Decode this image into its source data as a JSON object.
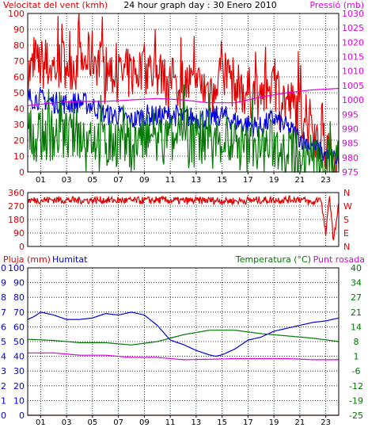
{
  "colors": {
    "red": "#e00000",
    "blue": "#0000e0",
    "green": "#007800",
    "magenta": "#e000e0",
    "grid": "#000000",
    "border": "#000000"
  },
  "chart_data": [
    {
      "id": "wind_pressure",
      "type": "line",
      "title": "24 hour graph day : 30 Enero 2010",
      "left_label": "Velocitat del vent (kmh)",
      "right_label": "Pressió (mb)",
      "x_ticks": [
        "01",
        "03",
        "05",
        "07",
        "09",
        "11",
        "13",
        "15",
        "17",
        "19",
        "21",
        "23"
      ],
      "x_range": [
        0,
        24
      ],
      "y_left_ticks": [
        "0",
        "10",
        "20",
        "30",
        "40",
        "50",
        "60",
        "70",
        "80",
        "90",
        "100"
      ],
      "y_left_range": [
        0,
        100
      ],
      "y_right_ticks": [
        "975",
        "980",
        "985",
        "990",
        "995",
        "1000",
        "1005",
        "1010",
        "1015",
        "1020",
        "1025",
        "1030"
      ],
      "y_right_range": [
        975,
        1030
      ],
      "grid": true,
      "series": [
        {
          "name": "Velocitat del vent",
          "color": "red",
          "axis": "left",
          "style": "gust",
          "x": [
            0,
            1,
            2,
            3,
            4,
            5,
            6,
            7,
            8,
            9,
            10,
            11,
            12,
            13,
            14,
            15,
            16,
            17,
            18,
            19,
            20,
            21,
            22,
            23,
            24
          ],
          "y": [
            62,
            68,
            66,
            70,
            66,
            74,
            64,
            60,
            62,
            66,
            62,
            56,
            56,
            54,
            52,
            66,
            54,
            50,
            48,
            56,
            44,
            38,
            28,
            14,
            8
          ]
        },
        {
          "name": "blue",
          "color": "blue",
          "axis": "left",
          "style": "noisy",
          "x": [
            0,
            1,
            2,
            3,
            4,
            5,
            6,
            7,
            8,
            9,
            10,
            11,
            12,
            13,
            14,
            15,
            16,
            17,
            18,
            19,
            20,
            21,
            22,
            23,
            24
          ],
          "y": [
            47,
            46,
            44,
            43,
            44,
            42,
            36,
            36,
            32,
            36,
            35,
            36,
            35,
            34,
            34,
            36,
            32,
            30,
            28,
            34,
            28,
            22,
            16,
            10,
            8
          ]
        },
        {
          "name": "green",
          "color": "green",
          "axis": "left",
          "style": "gust",
          "x": [
            0,
            1,
            2,
            3,
            4,
            5,
            6,
            7,
            8,
            9,
            10,
            11,
            12,
            13,
            14,
            15,
            16,
            17,
            18,
            19,
            20,
            21,
            22,
            23,
            24
          ],
          "y": [
            24,
            23,
            24,
            22,
            24,
            23,
            18,
            20,
            16,
            20,
            18,
            20,
            19,
            19,
            18,
            21,
            16,
            14,
            14,
            18,
            12,
            10,
            6,
            4,
            3
          ]
        },
        {
          "name": "Pressió",
          "color": "magenta",
          "axis": "right",
          "style": "smooth",
          "x": [
            0,
            2,
            4,
            6,
            8,
            10,
            12,
            14,
            16,
            18,
            20,
            22,
            24
          ],
          "y": [
            998,
            999,
            999.5,
            999.5,
            1000,
            1000.5,
            1000,
            999,
            999,
            1001,
            1002.5,
            1003.5,
            1004
          ]
        }
      ]
    },
    {
      "id": "wind_direction",
      "type": "line",
      "x_range": [
        0,
        24
      ],
      "y_left_ticks": [
        "0",
        "90",
        "180",
        "270",
        "360"
      ],
      "y_left_range": [
        0,
        360
      ],
      "y_right_ticks": [
        "N",
        "E",
        "S",
        "W",
        "N"
      ],
      "grid": true,
      "series": [
        {
          "name": "direction",
          "color": "red",
          "style": "noisy",
          "x": [
            0,
            2,
            4,
            6,
            8,
            10,
            12,
            14,
            16,
            18,
            20,
            21,
            22,
            22.6,
            23,
            23.3,
            23.6,
            24
          ],
          "y": [
            308,
            312,
            308,
            310,
            306,
            310,
            305,
            308,
            304,
            310,
            312,
            318,
            288,
            330,
            80,
            340,
            30,
            300
          ]
        }
      ]
    },
    {
      "id": "rain_humidity_temp",
      "type": "line",
      "left_label_1": "Pluja (mm)",
      "left_label_2": "Humitat",
      "right_label_1": "Temperatura (°C)",
      "right_label_2": "Punt rosada",
      "x_ticks": [
        "01",
        "03",
        "05",
        "07",
        "09",
        "11",
        "13",
        "15",
        "17",
        "19",
        "21",
        "23"
      ],
      "x_range": [
        0,
        24
      ],
      "y_left_ticks_1": [
        "0",
        "1",
        "2",
        "3",
        "4",
        "5",
        "6",
        "7",
        "8",
        "9",
        "10"
      ],
      "y_left_ticks_2": [
        "0",
        "10",
        "20",
        "30",
        "40",
        "50",
        "60",
        "70",
        "80",
        "90",
        "100"
      ],
      "y_left_range": [
        0,
        100
      ],
      "y_right_ticks": [
        "-25",
        "-19",
        "-12",
        "-6",
        "1",
        "8",
        "14",
        "21",
        "27",
        "34",
        "40"
      ],
      "y_right_range": [
        -25,
        40
      ],
      "grid": true,
      "series": [
        {
          "name": "Pluja",
          "color": "red",
          "axis": "left",
          "style": "smooth",
          "x": [
            0,
            24
          ],
          "y": [
            0,
            0
          ]
        },
        {
          "name": "Humitat",
          "color": "blue",
          "axis": "left",
          "style": "smooth",
          "x": [
            0,
            0.5,
            1,
            2,
            3,
            4,
            5,
            6,
            7,
            8,
            9,
            10,
            11,
            12,
            13,
            14,
            14.5,
            15,
            16,
            17,
            18,
            19,
            20,
            21,
            22,
            23,
            24
          ],
          "y": [
            65,
            67,
            70,
            68,
            65,
            65,
            66,
            69,
            68,
            70,
            68,
            61,
            51,
            48,
            44,
            41,
            40,
            41,
            45,
            51,
            53,
            57,
            59,
            61,
            63,
            64,
            66
          ]
        },
        {
          "name": "Temperatura",
          "color": "green",
          "axis": "right",
          "style": "smooth",
          "x": [
            0,
            2,
            4,
            6,
            8,
            10,
            12,
            14,
            16,
            18,
            20,
            22,
            24
          ],
          "y": [
            8.5,
            8,
            7,
            7,
            6,
            7.5,
            10.5,
            12.5,
            12.5,
            11,
            10,
            9,
            7.5
          ]
        },
        {
          "name": "Punt rosada",
          "color": "magenta",
          "axis": "right",
          "style": "smooth",
          "x": [
            0,
            2,
            4,
            6,
            8,
            10,
            12,
            14,
            16,
            18,
            20,
            22,
            24
          ],
          "y": [
            2.5,
            2.5,
            1.5,
            1.5,
            0.5,
            0.5,
            -0.5,
            -0.3,
            0,
            0,
            0,
            -0.5,
            -0.5
          ]
        }
      ]
    }
  ]
}
